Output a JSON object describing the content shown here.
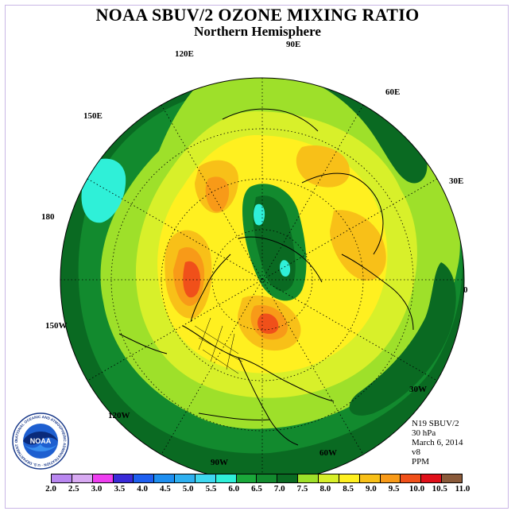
{
  "title": "NOAA SBUV/2 OZONE MIXING RATIO",
  "subtitle": "Northern Hemisphere",
  "longitudes": [
    {
      "label": "90E",
      "name": "lon-90e"
    },
    {
      "label": "60E",
      "name": "lon-60e"
    },
    {
      "label": "30E",
      "name": "lon-30e"
    },
    {
      "label": "0",
      "name": "lon-0"
    },
    {
      "label": "30W",
      "name": "lon-30w"
    },
    {
      "label": "60W",
      "name": "lon-60w"
    },
    {
      "label": "90W",
      "name": "lon-90w"
    },
    {
      "label": "120W",
      "name": "lon-120w"
    },
    {
      "label": "150W",
      "name": "lon-150w"
    },
    {
      "label": "180",
      "name": "lon-180"
    },
    {
      "label": "150E",
      "name": "lon-150e"
    },
    {
      "label": "120E",
      "name": "lon-120e"
    }
  ],
  "info": {
    "instrument": "N19 SBUV/2",
    "level": "30 hPa",
    "date": "March 6, 2014",
    "version": "v8",
    "units": "PPM"
  },
  "logo": {
    "text": "NOAA",
    "ring_text": "NATIONAL OCEANIC AND ATMOSPHERIC ADMINISTRATION · U.S. DEPARTMENT OF COMMERCE"
  },
  "colorbar": {
    "ticks": [
      "2.0",
      "2.5",
      "3.0",
      "3.5",
      "4.0",
      "4.5",
      "5.0",
      "5.5",
      "6.0",
      "6.5",
      "7.0",
      "7.5",
      "8.0",
      "8.5",
      "9.0",
      "9.5",
      "10.0",
      "10.5",
      "11.0"
    ],
    "colors": [
      "#b987f0",
      "#d8aaf2",
      "#ee3ef0",
      "#3a2bd8",
      "#1e5ff0",
      "#1e8ff0",
      "#2fb0f0",
      "#3fd8f0",
      "#2ff0d8",
      "#1aa83a",
      "#128a2e",
      "#0a6a22",
      "#9ee02a",
      "#d8f02a",
      "#fff020",
      "#f8c018",
      "#f89a18",
      "#f0501a",
      "#e0101a",
      "#8a5a3a"
    ]
  },
  "colors": {
    "dark_green": "#0a6a22",
    "med_green": "#128a2e",
    "light_green": "#9ee02a",
    "yellow_green": "#d8f02a",
    "yellow": "#fff020",
    "gold": "#f8c018",
    "orange": "#f89a18",
    "red_orange": "#f0501a",
    "cyan": "#2ff0d8"
  }
}
